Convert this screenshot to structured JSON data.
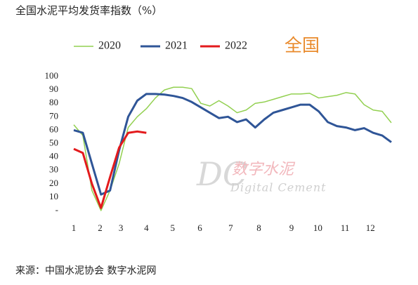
{
  "chart_data": {
    "type": "line",
    "title": "全国水泥平均发货率指数（%）",
    "annotation": "全国",
    "watermark": {
      "logo": "DC",
      "name": "数字水泥",
      "english": "Digital Cement"
    },
    "source": "来源：中国水泥协会  数字水泥网",
    "x": [
      0,
      1,
      2,
      3,
      4,
      5,
      6,
      7,
      8,
      9,
      10,
      11,
      12,
      13,
      14,
      15,
      16,
      17,
      18,
      19,
      20,
      21,
      22,
      23,
      24,
      25,
      26,
      27,
      28,
      29,
      30,
      31,
      32,
      33,
      34,
      35
    ],
    "xlim": [
      0,
      35
    ],
    "xticks": [
      {
        "value": 0,
        "label": "1"
      },
      {
        "value": 2.9,
        "label": "2"
      },
      {
        "value": 5.2,
        "label": "3"
      },
      {
        "value": 8,
        "label": "4"
      },
      {
        "value": 10.9,
        "label": "5"
      },
      {
        "value": 13.9,
        "label": "6"
      },
      {
        "value": 17.3,
        "label": "7"
      },
      {
        "value": 20.4,
        "label": "8"
      },
      {
        "value": 24,
        "label": "9"
      },
      {
        "value": 26.9,
        "label": "10"
      },
      {
        "value": 29.9,
        "label": "11"
      },
      {
        "value": 32.7,
        "label": "12"
      }
    ],
    "ylim": [
      0,
      100
    ],
    "yticks": [
      {
        "value": 0,
        "label": "-"
      },
      10,
      20,
      30,
      40,
      50,
      60,
      70,
      80,
      90,
      100
    ],
    "grid": false,
    "legend": "top",
    "series": [
      {
        "name": "2020",
        "color": "#92d050",
        "width": 1.5,
        "values": [
          64,
          56,
          15,
          0,
          15,
          35,
          62,
          70,
          76,
          84,
          90,
          92,
          92,
          91,
          80,
          78,
          82,
          78,
          73,
          75,
          80,
          81,
          83,
          85,
          87,
          87,
          87.5,
          84,
          85,
          86,
          88,
          87,
          79,
          75,
          74,
          65.5
        ]
      },
      {
        "name": "2021",
        "color": "#2f5597",
        "width": 3,
        "values": [
          60,
          58,
          35,
          12,
          15,
          45,
          70,
          82,
          87,
          87,
          86.5,
          85.5,
          84,
          81,
          77,
          73,
          69,
          70,
          66,
          68,
          62,
          68,
          73,
          75,
          77,
          79,
          79,
          74,
          66,
          63,
          62,
          60,
          61.5,
          58,
          56,
          51
        ]
      },
      {
        "name": "2022",
        "color": "#e31a1c",
        "width": 3,
        "values": [
          46,
          43,
          20,
          2,
          25,
          47,
          58,
          59,
          58,
          null,
          null,
          null,
          null,
          null,
          null,
          null,
          null,
          null,
          null,
          null,
          null,
          null,
          null,
          null,
          null,
          null,
          null,
          null,
          null,
          null,
          null,
          null,
          null,
          null,
          null,
          null
        ]
      }
    ]
  }
}
